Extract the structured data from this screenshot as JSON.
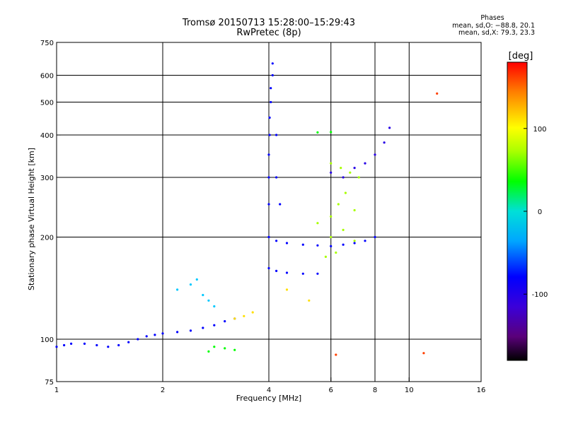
{
  "title_lines": [
    "Tromsø 20150713 15:28:00–15:29:43",
    "RwPretec (8p)"
  ],
  "phases": {
    "title": "Phases",
    "o_line": "mean, sd,O: −88.8, 20.1",
    "x_line": "mean, sd,X:  79.3, 23.3"
  },
  "chart_data": {
    "type": "scatter",
    "xlabel": "Frequency [MHz]",
    "ylabel": "Stationary phase Virtual Height [km]",
    "x_scale": "log",
    "y_scale": "log",
    "xlim": [
      1,
      16
    ],
    "ylim": [
      75,
      750
    ],
    "x_ticks": [
      1,
      2,
      4,
      6,
      8,
      10,
      16
    ],
    "x_grid": [
      2,
      4,
      6,
      8,
      10
    ],
    "y_ticks": [
      75,
      100,
      200,
      300,
      400,
      500,
      600,
      750
    ],
    "y_grid": [
      100,
      200,
      300,
      400,
      500,
      600
    ],
    "grid": true,
    "colorbar": {
      "label": "[deg]",
      "range": [
        -180,
        180
      ],
      "ticks": [
        100,
        0,
        -100
      ],
      "colormap": "rainbow (black → purple → blue → cyan → green → yellow → orange → red)"
    },
    "series": [
      {
        "phase": -100,
        "x": [
          1.0,
          1.05,
          1.1,
          1.2,
          1.3,
          1.4,
          1.5,
          1.6,
          1.7,
          1.8,
          1.9,
          2.0,
          2.2,
          2.4,
          2.6,
          2.8,
          3.0,
          3.2
        ],
        "y": [
          95,
          96,
          97,
          97,
          96,
          95,
          96,
          98,
          100,
          102,
          103,
          104,
          105,
          106,
          108,
          110,
          113,
          115
        ]
      },
      {
        "phase": -100,
        "x": [
          4.0,
          4.0,
          4.0,
          4.0,
          4.02,
          4.02,
          4.05,
          4.05,
          4.1,
          4.1,
          4.2,
          4.2,
          4.3
        ],
        "y": [
          200,
          250,
          300,
          350,
          400,
          450,
          500,
          550,
          600,
          650,
          400,
          300,
          250
        ]
      },
      {
        "phase": -100,
        "x": [
          4.0,
          4.2,
          4.5,
          5.0,
          5.5,
          6.0,
          6.5,
          7.0,
          7.5,
          8.0
        ],
        "y": [
          200,
          195,
          192,
          190,
          189,
          188,
          190,
          192,
          195,
          200
        ]
      },
      {
        "phase": -100,
        "x": [
          4.0,
          4.2,
          4.5,
          5.0,
          5.5
        ],
        "y": [
          162,
          159,
          157,
          156,
          156
        ]
      },
      {
        "phase": -110,
        "x": [
          6.0,
          6.5,
          7.0,
          7.5,
          8.0,
          8.5,
          8.8
        ],
        "y": [
          310,
          300,
          320,
          330,
          350,
          380,
          420
        ]
      },
      {
        "phase": 70,
        "x": [
          5.5,
          6.0,
          6.3,
          6.6,
          7.0,
          7.2,
          6.0,
          6.5,
          7.0,
          6.0,
          6.4,
          6.8,
          5.8,
          6.2
        ],
        "y": [
          220,
          230,
          250,
          270,
          240,
          300,
          200,
          210,
          195,
          330,
          320,
          310,
          175,
          180
        ]
      },
      {
        "phase": -40,
        "x": [
          2.2,
          2.4,
          2.5,
          2.6,
          2.7,
          2.8
        ],
        "y": [
          140,
          145,
          150,
          135,
          130,
          125
        ]
      },
      {
        "phase": 110,
        "x": [
          3.2,
          3.4,
          3.6,
          4.5,
          5.2
        ],
        "y": [
          115,
          117,
          120,
          140,
          130
        ]
      },
      {
        "phase": 40,
        "x": [
          2.7,
          2.8,
          3.0,
          3.2,
          5.5,
          6.0
        ],
        "y": [
          92,
          95,
          94,
          93,
          407,
          408
        ]
      },
      {
        "phase": 160,
        "x": [
          12.0,
          6.2,
          11.0
        ],
        "y": [
          530,
          90,
          91
        ]
      }
    ]
  }
}
